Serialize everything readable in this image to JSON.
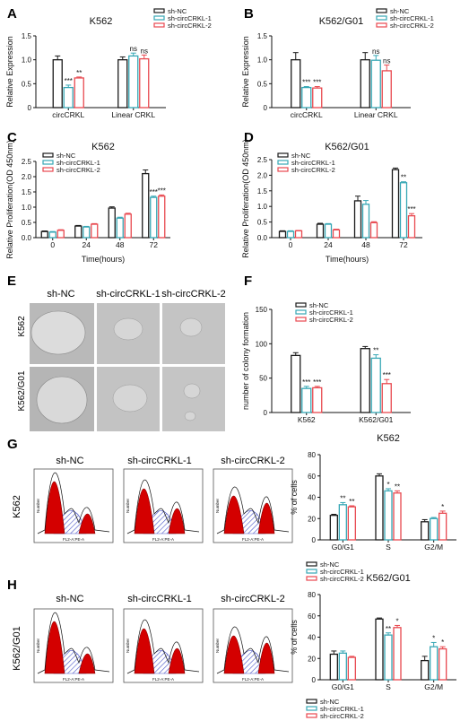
{
  "panel_letters": [
    "A",
    "B",
    "C",
    "D",
    "E",
    "F",
    "G",
    "H"
  ],
  "legend_labels": [
    "sh-NC",
    "sh-circCRKL-1",
    "sh-circCRKL-2"
  ],
  "colors": {
    "sh-NC": "#1a1a1a",
    "sh-circCRKL-1": "#36a7b5",
    "sh-circCRKL-2": "#e8484f"
  },
  "images": {
    "column_titles": [
      "sh-NC",
      "sh-circCRKL-1",
      "sh-circCRKL-2"
    ],
    "row_labels_E": [
      "K562",
      "K562/G01"
    ],
    "row_label_G": "K562",
    "row_label_H": "K562/G01",
    "histogram_axis_x": "FL2-A:PE-A",
    "histogram_axis_y": "Number"
  },
  "chart_data": [
    {
      "id": "A",
      "type": "bar",
      "title": "K562",
      "ylabel": "Relative Expression",
      "ylim": [
        0,
        1.5
      ],
      "yticks": [
        "0",
        "0.5",
        "1.0",
        "1.5"
      ],
      "categories": [
        "circCRKL",
        "Linear CRKL"
      ],
      "series": [
        {
          "name": "sh-NC",
          "values": [
            1.0,
            1.0
          ],
          "errors": [
            0.08,
            0.06
          ]
        },
        {
          "name": "sh-circCRKL-1",
          "values": [
            0.42,
            1.08
          ],
          "errors": [
            0.05,
            0.06
          ]
        },
        {
          "name": "sh-circCRKL-2",
          "values": [
            0.62,
            1.02
          ],
          "errors": [
            0.02,
            0.08
          ]
        }
      ],
      "sig": [
        [
          "",
          "***",
          "**"
        ],
        [
          "",
          "ns",
          "ns"
        ]
      ]
    },
    {
      "id": "B",
      "type": "bar",
      "title": "K562/G01",
      "ylabel": "Relative Expression",
      "ylim": [
        0,
        1.5
      ],
      "yticks": [
        "0",
        "0.5",
        "1.0",
        "1.5"
      ],
      "categories": [
        "circCRKL",
        "Linear CRKL"
      ],
      "series": [
        {
          "name": "sh-NC",
          "values": [
            1.0,
            1.0
          ],
          "errors": [
            0.15,
            0.15
          ]
        },
        {
          "name": "sh-circCRKL-1",
          "values": [
            0.42,
            0.99
          ],
          "errors": [
            0.02,
            0.1
          ]
        },
        {
          "name": "sh-circCRKL-2",
          "values": [
            0.41,
            0.77
          ],
          "errors": [
            0.03,
            0.12
          ]
        }
      ],
      "sig": [
        [
          "",
          "***",
          "***"
        ],
        [
          "",
          "ns",
          "ns"
        ]
      ]
    },
    {
      "id": "C",
      "type": "bar",
      "title": "K562",
      "ylabel": "Relative Proliferation(OD 450nm)",
      "xlabel": "Time(hours)",
      "ylim": [
        0,
        2.5
      ],
      "yticks": [
        "0.0",
        "0.5",
        "1.0",
        "1.5",
        "2.0",
        "2.5"
      ],
      "categories": [
        "0",
        "24",
        "48",
        "72"
      ],
      "series": [
        {
          "name": "sh-NC",
          "values": [
            0.2,
            0.38,
            0.97,
            2.1
          ],
          "errors": [
            0.02,
            0.02,
            0.04,
            0.12
          ]
        },
        {
          "name": "sh-circCRKL-1",
          "values": [
            0.18,
            0.35,
            0.64,
            1.32
          ],
          "errors": [
            0.02,
            0.02,
            0.03,
            0.04
          ]
        },
        {
          "name": "sh-circCRKL-2",
          "values": [
            0.24,
            0.44,
            0.77,
            1.36
          ],
          "errors": [
            0.02,
            0.02,
            0.03,
            0.04
          ]
        }
      ],
      "sig": [
        [
          "",
          "",
          ""
        ],
        [
          "",
          "",
          ""
        ],
        [
          "",
          "",
          ""
        ],
        [
          "",
          "***",
          "***"
        ]
      ]
    },
    {
      "id": "D",
      "type": "bar",
      "title": "K562/G01",
      "ylabel": "Relative Proliferation(OD 450nm)",
      "xlabel": "Time(hours)",
      "ylim": [
        0,
        2.5
      ],
      "yticks": [
        "0.0",
        "0.5",
        "1.0",
        "1.5",
        "2.0",
        "2.5"
      ],
      "categories": [
        "0",
        "24",
        "48",
        "72"
      ],
      "series": [
        {
          "name": "sh-NC",
          "values": [
            0.2,
            0.43,
            1.18,
            2.18
          ],
          "errors": [
            0.02,
            0.03,
            0.15,
            0.05
          ]
        },
        {
          "name": "sh-circCRKL-1",
          "values": [
            0.2,
            0.43,
            1.07,
            1.76
          ],
          "errors": [
            0.02,
            0.02,
            0.12,
            0.03
          ]
        },
        {
          "name": "sh-circCRKL-2",
          "values": [
            0.22,
            0.25,
            0.48,
            0.7
          ],
          "errors": [
            0.01,
            0.02,
            0.03,
            0.07
          ]
        }
      ],
      "sig": [
        [
          "",
          "",
          ""
        ],
        [
          "",
          "",
          ""
        ],
        [
          "",
          "",
          ""
        ],
        [
          "",
          "**",
          "***"
        ]
      ]
    },
    {
      "id": "F",
      "type": "bar",
      "title": "",
      "ylabel": "number of colony formation",
      "ylim": [
        0,
        150
      ],
      "yticks": [
        "0",
        "50",
        "100",
        "150"
      ],
      "categories": [
        "K562",
        "K562/G01"
      ],
      "series": [
        {
          "name": "sh-NC",
          "values": [
            83,
            93
          ],
          "errors": [
            4,
            3
          ]
        },
        {
          "name": "sh-circCRKL-1",
          "values": [
            35,
            79
          ],
          "errors": [
            3,
            5
          ]
        },
        {
          "name": "sh-circCRKL-2",
          "values": [
            36,
            42
          ],
          "errors": [
            2,
            6
          ]
        }
      ],
      "sig": [
        [
          "",
          "***",
          "***"
        ],
        [
          "",
          "**",
          "***"
        ]
      ]
    },
    {
      "id": "G",
      "type": "bar",
      "title": "K562",
      "ylabel": "% of cells",
      "ylim": [
        0,
        80
      ],
      "yticks": [
        "0",
        "20",
        "40",
        "60",
        "80"
      ],
      "categories": [
        "G0/G1",
        "S",
        "G2/M"
      ],
      "series": [
        {
          "name": "sh-NC",
          "values": [
            23,
            60,
            17
          ],
          "errors": [
            1,
            2,
            2
          ]
        },
        {
          "name": "sh-circCRKL-1",
          "values": [
            33,
            46,
            20
          ],
          "errors": [
            2,
            2,
            1
          ]
        },
        {
          "name": "sh-circCRKL-2",
          "values": [
            31,
            44,
            25
          ],
          "errors": [
            1,
            2,
            2
          ]
        }
      ],
      "sig": [
        [
          "",
          "**",
          "**"
        ],
        [
          "",
          "*",
          "**"
        ],
        [
          "",
          "",
          "*"
        ]
      ]
    },
    {
      "id": "H",
      "type": "bar",
      "title": "K562/G01",
      "ylabel": "% of cells",
      "ylim": [
        0,
        80
      ],
      "yticks": [
        "0",
        "20",
        "40",
        "60",
        "80"
      ],
      "categories": [
        "G0/G1",
        "S",
        "G2/M"
      ],
      "series": [
        {
          "name": "sh-NC",
          "values": [
            24,
            57,
            18
          ],
          "errors": [
            3,
            1,
            4
          ]
        },
        {
          "name": "sh-circCRKL-1",
          "values": [
            25,
            42,
            31
          ],
          "errors": [
            2,
            2,
            4
          ]
        },
        {
          "name": "sh-circCRKL-2",
          "values": [
            21,
            49,
            29
          ],
          "errors": [
            1,
            2,
            2
          ]
        }
      ],
      "sig": [
        [
          "",
          "",
          ""
        ],
        [
          "",
          "**",
          "*"
        ],
        [
          "",
          "*",
          "*"
        ]
      ]
    }
  ]
}
